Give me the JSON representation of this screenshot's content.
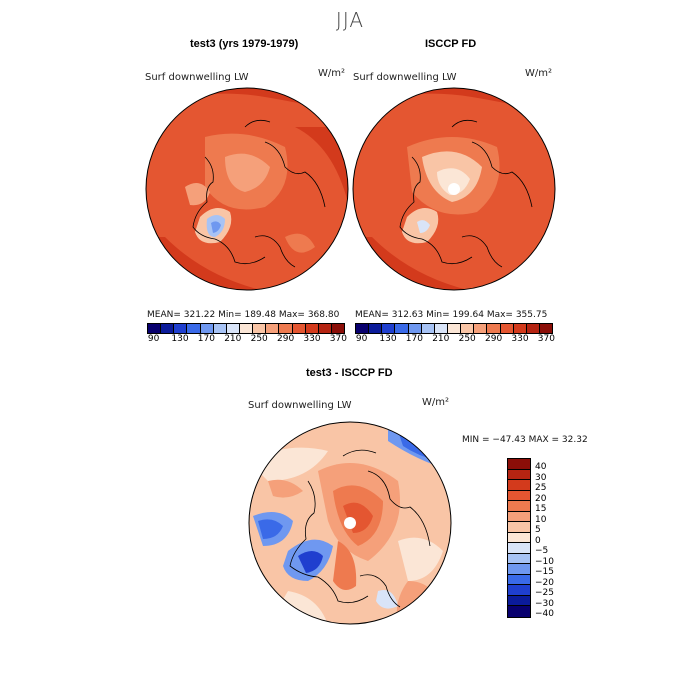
{
  "season": "JJA",
  "panels": {
    "left": {
      "title": "test3 (yrs 1979-1979)",
      "variable": "Surf downwelling LW",
      "units": "W/m²",
      "stats": "MEAN= 321.22   Min= 189.48   Max= 368.80"
    },
    "right": {
      "title": "ISCCP FD",
      "variable": "Surf downwelling LW",
      "units": "W/m²",
      "stats": "MEAN= 312.63   Min= 199.64   Max= 355.75"
    },
    "diff": {
      "title": "test3 - ISCCP FD",
      "variable": "Surf downwelling LW",
      "units": "W/m²",
      "stats": "MIN = −47.43 MAX =  32.32"
    }
  },
  "colorbar_abs": {
    "colors": [
      "#08006e",
      "#0b1b9a",
      "#1f3fcf",
      "#3a6ae8",
      "#6f98f0",
      "#a7c3f5",
      "#d9e4f8",
      "#fbe6d6",
      "#f9c5a6",
      "#f5a07a",
      "#ee7a4f",
      "#e45631",
      "#d33a1c",
      "#b52412",
      "#8b0e08"
    ],
    "labels": [
      "90",
      "130",
      "170",
      "210",
      "250",
      "290",
      "330",
      "370"
    ]
  },
  "colorbar_diff": {
    "colors": [
      "#8b0e08",
      "#b52412",
      "#d33a1c",
      "#e45631",
      "#ee7a4f",
      "#f5a07a",
      "#f9c5a6",
      "#fbe6d6",
      "#d9e4f8",
      "#a7c3f5",
      "#6f98f0",
      "#3a6ae8",
      "#1f3fcf",
      "#0b1b9a",
      "#08006e"
    ],
    "labels": [
      "40",
      "30",
      "25",
      "20",
      "15",
      "10",
      "5",
      "0",
      "−5",
      "−10",
      "−15",
      "−20",
      "−25",
      "−30",
      "−40"
    ]
  }
}
